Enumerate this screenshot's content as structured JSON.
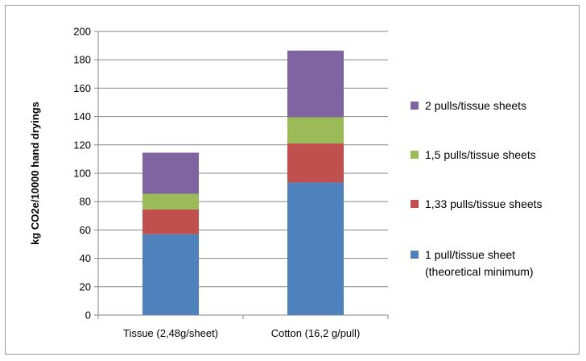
{
  "chart_data": {
    "type": "bar",
    "stacked": true,
    "categories": [
      "Tissue (2,48g/sheet)",
      "Cotton (16,2 g/pull)"
    ],
    "series": [
      {
        "name": "1 pull/tissue sheet (theoretical minimum)",
        "values": [
          57,
          93.5
        ],
        "color": "#4F81BD"
      },
      {
        "name": "1,33 pulls/tissue sheets",
        "values": [
          17.5,
          27.5
        ],
        "color": "#C0504D"
      },
      {
        "name": "1,5 pulls/tissue sheets",
        "values": [
          11,
          18.5
        ],
        "color": "#9BBB59"
      },
      {
        "name": "2 pulls/tissue sheets",
        "values": [
          29,
          47
        ],
        "color": "#8064A2"
      }
    ],
    "title": "",
    "xlabel": "",
    "ylabel": "kg CO2e/10000 hand dryings",
    "ylim": [
      0,
      200
    ],
    "yticks": [
      0,
      20,
      40,
      60,
      80,
      100,
      120,
      140,
      160,
      180,
      200
    ],
    "grid": true,
    "legend": "right",
    "legend_lines": [
      [
        "2 pulls/tissue sheets"
      ],
      [
        "1,5 pulls/tissue sheets"
      ],
      [
        "1,33 pulls/tissue sheets"
      ],
      [
        "1 pull/tissue sheet",
        "(theoretical minimum)"
      ]
    ]
  }
}
